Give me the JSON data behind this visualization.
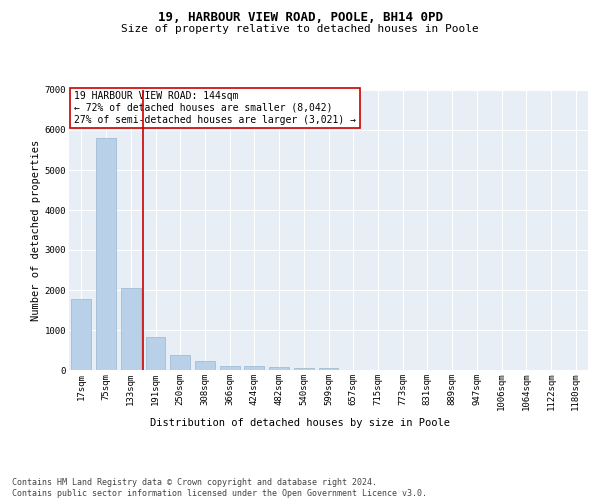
{
  "title": "19, HARBOUR VIEW ROAD, POOLE, BH14 0PD",
  "subtitle": "Size of property relative to detached houses in Poole",
  "xlabel": "Distribution of detached houses by size in Poole",
  "ylabel": "Number of detached properties",
  "bin_labels": [
    "17sqm",
    "75sqm",
    "133sqm",
    "191sqm",
    "250sqm",
    "308sqm",
    "366sqm",
    "424sqm",
    "482sqm",
    "540sqm",
    "599sqm",
    "657sqm",
    "715sqm",
    "773sqm",
    "831sqm",
    "889sqm",
    "947sqm",
    "1006sqm",
    "1064sqm",
    "1122sqm",
    "1180sqm"
  ],
  "bar_heights": [
    1780,
    5800,
    2060,
    830,
    380,
    230,
    110,
    100,
    70,
    50,
    60,
    0,
    0,
    0,
    0,
    0,
    0,
    0,
    0,
    0,
    0
  ],
  "bar_color": "#b8d0e8",
  "bar_edge_color": "#8aaec8",
  "vline_x_index": 2.5,
  "vline_color": "#cc0000",
  "annotation_text": "19 HARBOUR VIEW ROAD: 144sqm\n← 72% of detached houses are smaller (8,042)\n27% of semi-detached houses are larger (3,021) →",
  "annotation_box_color": "white",
  "annotation_box_edge": "#cc0000",
  "ylim": [
    0,
    7000
  ],
  "yticks": [
    0,
    1000,
    2000,
    3000,
    4000,
    5000,
    6000,
    7000
  ],
  "bg_color": "#e8eef5",
  "grid_color": "white",
  "title_fontsize": 9,
  "subtitle_fontsize": 8,
  "ylabel_fontsize": 7.5,
  "xlabel_fontsize": 7.5,
  "tick_fontsize": 6.5,
  "annotation_fontsize": 7,
  "footer_fontsize": 6,
  "footer_line1": "Contains HM Land Registry data © Crown copyright and database right 2024.",
  "footer_line2": "Contains public sector information licensed under the Open Government Licence v3.0."
}
